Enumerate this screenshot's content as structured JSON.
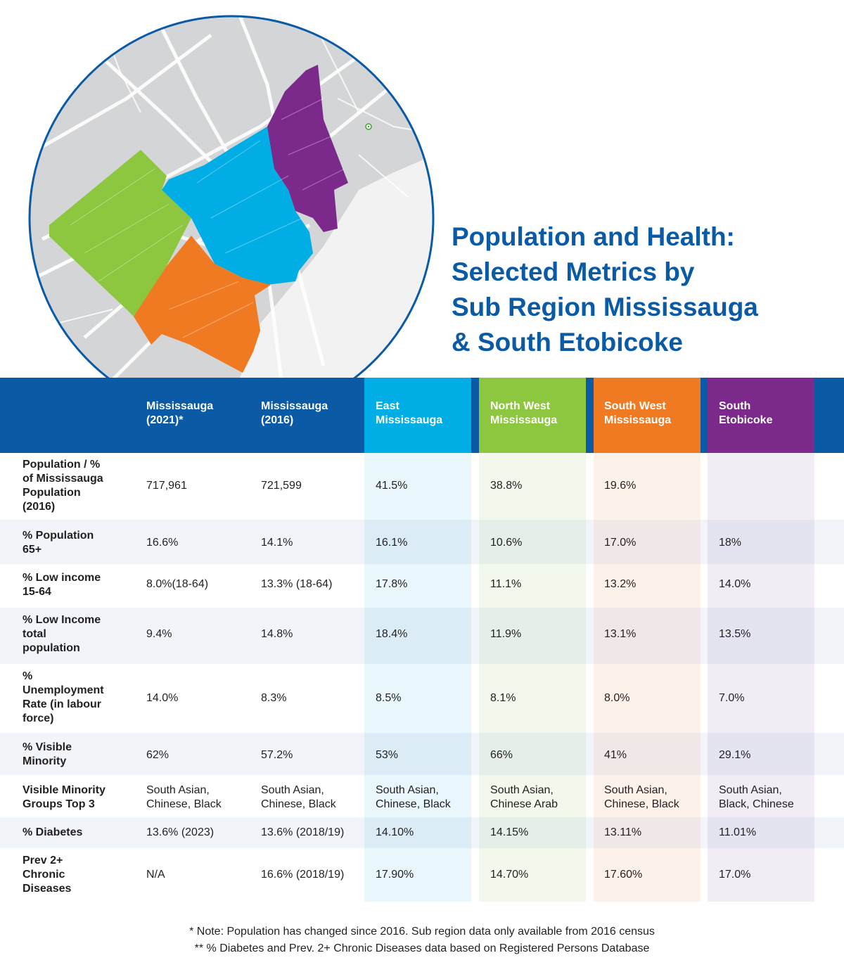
{
  "title": {
    "lines": [
      "Population and Health:",
      "Selected Metrics by",
      "Sub Region Mississauga",
      "& South Etobicoke"
    ]
  },
  "colors": {
    "brand_blue": "#0a5aa6",
    "east": "#00aee5",
    "north_west": "#8dc63f",
    "south_west": "#f07a22",
    "south_etobicoke": "#7b2a8b",
    "map_base": "#d3d5d6"
  },
  "map": {
    "regions": [
      "East Mississauga",
      "North West Mississauga",
      "South West Mississauga",
      "South Etobicoke"
    ],
    "marker_icon": "map-pin-icon"
  },
  "table": {
    "columns": [
      "Mississauga\n(2021)*",
      "Mississauga\n(2016)",
      "East\nMississauga",
      "North West\nMississauga",
      "South West\nMississauga",
      "South\nEtobicoke"
    ],
    "rows": [
      {
        "label": "Population / %\nof Mississauga\nPopulation\n(2016)",
        "values": [
          "717,961",
          "721,599",
          "41.5%",
          "38.8%",
          "19.6%",
          ""
        ]
      },
      {
        "label": "% Population\n65+",
        "values": [
          "16.6%",
          "14.1%",
          "16.1%",
          "10.6%",
          "17.0%",
          "18%"
        ]
      },
      {
        "label": "% Low income\n15-64",
        "values": [
          "8.0%(18-64)",
          "13.3% (18-64)",
          "17.8%",
          "11.1%",
          "13.2%",
          "14.0%"
        ]
      },
      {
        "label": "% Low Income\ntotal\npopulation",
        "values": [
          "9.4%",
          "14.8%",
          "18.4%",
          "11.9%",
          "13.1%",
          "13.5%"
        ]
      },
      {
        "label": "%\nUnemployment\nRate (in labour\nforce)",
        "values": [
          "14.0%",
          "8.3%",
          "8.5%",
          "8.1%",
          "8.0%",
          "7.0%"
        ]
      },
      {
        "label": "% Visible\nMinority",
        "values": [
          "62%",
          "57.2%",
          "53%",
          "66%",
          "41%",
          "29.1%"
        ]
      },
      {
        "label": "Visible Minority\nGroups Top 3",
        "values": [
          "South Asian,\nChinese, Black",
          "South Asian,\nChinese, Black",
          "South Asian,\nChinese, Black",
          "South Asian,\nChinese Arab",
          "South Asian,\nChinese, Black",
          "South Asian,\nBlack, Chinese"
        ]
      },
      {
        "label": "% Diabetes",
        "values": [
          "13.6% (2023)",
          "13.6% (2018/19)",
          "14.10%",
          "14.15%",
          "13.11%",
          "11.01%"
        ]
      },
      {
        "label": "Prev 2+\nChronic\nDiseases",
        "values": [
          "N/A",
          "16.6% (2018/19)",
          "17.90%",
          "14.70%",
          "17.60%",
          "17.0%"
        ]
      }
    ]
  },
  "notes": [
    "* Note: Population has changed since 2016. Sub region data only available from 2016 census",
    "** % Diabetes and Prev. 2+ Chronic Diseases data based on Registered Persons Database"
  ]
}
